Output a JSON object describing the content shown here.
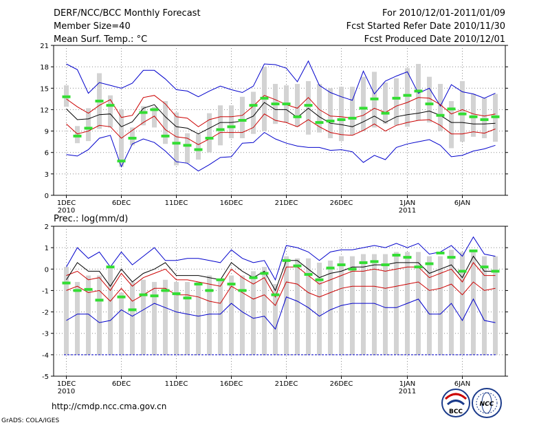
{
  "header": {
    "title": "DERF/NCC/BCC Monthly Forecast",
    "member_size": "Member Size=40",
    "variable_top": "Mean Surf. Temp.: °C",
    "period": "For 2010/12/01-2011/01/09",
    "started": "Fcst Started Refer Date 2010/11/30",
    "produced": "Fcst Produced Date 2010/12/01"
  },
  "footer": {
    "url": "http://cmdp.ncc.cma.gov.cn",
    "credit": "GrADS: COLA/IGES",
    "logo_left_text": "BCC",
    "logo_right_text": "NCC"
  },
  "colors": {
    "box": "#d3d3d3",
    "median": "#000000",
    "quartile": "#cc0000",
    "extreme": "#0000cc",
    "observed": "#33dd33",
    "grid": "#888888"
  },
  "chart_data": [
    {
      "type": "box-plume",
      "title": "Mean Surf. Temp.: °C",
      "ylabel": "°C",
      "ylim": [
        0,
        21
      ],
      "yticks": [
        0,
        3,
        6,
        9,
        12,
        15,
        18,
        21
      ],
      "xticks": [
        {
          "day": 1,
          "label": "1DEC",
          "sub": "2010"
        },
        {
          "day": 6,
          "label": "6DEC",
          "sub": ""
        },
        {
          "day": 11,
          "label": "11DEC",
          "sub": ""
        },
        {
          "day": 16,
          "label": "16DEC",
          "sub": ""
        },
        {
          "day": 21,
          "label": "21DEC",
          "sub": ""
        },
        {
          "day": 26,
          "label": "26DEC",
          "sub": ""
        },
        {
          "day": 32,
          "label": "1JAN",
          "sub": "2011"
        },
        {
          "day": 37,
          "label": "6JAN",
          "sub": ""
        }
      ],
      "days": 40,
      "box_low": [
        12.4,
        7.3,
        7.6,
        9.3,
        9.5,
        4.0,
        7.0,
        9.8,
        9.5,
        7.2,
        4.2,
        4.5,
        5.0,
        6.0,
        7.0,
        8.0,
        8.0,
        8.6,
        9.0,
        10.0,
        10.2,
        9.6,
        8.5,
        8.8,
        8.0,
        7.6,
        8.4,
        9.0,
        9.5,
        10.0,
        9.8,
        9.6,
        10.5,
        10.2,
        9.0,
        6.6,
        7.5,
        8.2,
        8.0,
        7.5
      ],
      "box_high": [
        15.4,
        9.7,
        12.2,
        17.1,
        14.0,
        12.0,
        9.5,
        12.5,
        12.4,
        13.2,
        11.6,
        8.7,
        8.6,
        11.5,
        12.6,
        12.6,
        13.8,
        14.5,
        18.0,
        15.6,
        15.4,
        15.6,
        16.0,
        15.6,
        15.0,
        15.2,
        15.2,
        16.6,
        17.3,
        15.8,
        16.4,
        17.8,
        18.4,
        16.6,
        15.6,
        13.2,
        16.0,
        14.2,
        13.6,
        14.2
      ],
      "median": [
        12.1,
        10.6,
        10.7,
        11.3,
        11.4,
        9.6,
        10.3,
        12.2,
        12.7,
        11.0,
        9.6,
        9.4,
        8.6,
        9.4,
        10.2,
        10.2,
        10.4,
        11.1,
        13.0,
        12.0,
        12.0,
        10.9,
        12.2,
        11.0,
        10.1,
        9.9,
        9.6,
        10.3,
        11.1,
        10.2,
        11.0,
        11.3,
        11.5,
        11.8,
        11.2,
        10.2,
        10.2,
        10.0,
        10.0,
        10.1
      ],
      "q_high": [
        13.5,
        12.4,
        11.5,
        12.6,
        13.4,
        10.9,
        11.2,
        13.7,
        14.0,
        12.8,
        11.0,
        10.8,
        9.6,
        10.6,
        11.0,
        11.0,
        11.2,
        12.5,
        14.0,
        13.4,
        12.7,
        12.2,
        13.7,
        12.0,
        11.1,
        11.0,
        10.8,
        11.2,
        12.2,
        11.6,
        12.5,
        13.0,
        13.7,
        13.6,
        12.7,
        11.4,
        12.0,
        11.4,
        11.1,
        11.4
      ],
      "q_low": [
        10.0,
        8.6,
        9.0,
        9.8,
        9.6,
        8.0,
        9.1,
        10.2,
        11.1,
        9.2,
        8.2,
        8.0,
        7.1,
        7.9,
        8.8,
        8.8,
        8.8,
        9.5,
        11.4,
        10.5,
        10.2,
        9.6,
        10.6,
        9.6,
        8.8,
        8.5,
        8.4,
        9.1,
        10.0,
        9.0,
        9.8,
        10.2,
        10.5,
        10.6,
        9.8,
        8.6,
        8.6,
        8.9,
        8.7,
        9.3
      ],
      "max_line": [
        18.4,
        17.6,
        14.3,
        15.8,
        15.4,
        15.0,
        15.7,
        17.5,
        17.5,
        16.3,
        14.8,
        14.6,
        13.8,
        14.6,
        15.3,
        14.8,
        14.4,
        15.3,
        18.4,
        18.3,
        17.8,
        15.9,
        18.8,
        15.4,
        14.4,
        13.8,
        13.3,
        17.4,
        14.2,
        16.0,
        16.7,
        17.3,
        14.3,
        15.0,
        12.5,
        15.5,
        14.5,
        14.2,
        13.6,
        14.3
      ],
      "min_line": [
        5.7,
        5.5,
        6.4,
        8.0,
        8.4,
        4.0,
        7.2,
        7.9,
        7.4,
        6.2,
        4.7,
        4.5,
        3.4,
        4.3,
        5.3,
        5.4,
        7.3,
        7.4,
        8.8,
        7.9,
        7.3,
        6.9,
        6.7,
        6.7,
        6.3,
        6.4,
        6.1,
        4.6,
        5.6,
        5.0,
        6.7,
        7.2,
        7.5,
        7.8,
        7.0,
        5.4,
        5.6,
        6.2,
        6.5,
        7.0
      ],
      "observed": [
        13.8,
        8.3,
        9.4,
        13.2,
        12.6,
        4.8,
        8.0,
        11.6,
        12.0,
        8.3,
        7.3,
        7.0,
        6.4,
        8.0,
        9.2,
        9.6,
        10.5,
        12.6,
        13.6,
        12.8,
        12.8,
        11.0,
        12.6,
        10.2,
        10.4,
        10.6,
        10.8,
        12.2,
        13.5,
        11.5,
        13.6,
        14.0,
        14.6,
        12.8,
        11.2,
        12.1,
        11.4,
        11.0,
        10.6,
        11.0
      ]
    },
    {
      "type": "box-plume",
      "title": "Prec.: log(mm/d)",
      "ylabel": "log(mm/d)",
      "ylim": [
        -5,
        2
      ],
      "yticks": [
        -5,
        -4,
        -3,
        -2,
        -1,
        0,
        1,
        2
      ],
      "xticks": [
        {
          "day": 1,
          "label": "1DEC",
          "sub": "2010"
        },
        {
          "day": 6,
          "label": "6DEC",
          "sub": ""
        },
        {
          "day": 11,
          "label": "11DEC",
          "sub": ""
        },
        {
          "day": 16,
          "label": "16DEC",
          "sub": ""
        },
        {
          "day": 21,
          "label": "21DEC",
          "sub": ""
        },
        {
          "day": 26,
          "label": "26DEC",
          "sub": ""
        },
        {
          "day": 32,
          "label": "1JAN",
          "sub": "2011"
        },
        {
          "day": 37,
          "label": "6JAN",
          "sub": ""
        }
      ],
      "days": 40,
      "box_low": [
        -4,
        -4,
        -4,
        -4,
        -4,
        -4,
        -4,
        -4,
        -4,
        -4,
        -4,
        -4,
        -4,
        -4,
        -4,
        -4,
        -4,
        -4,
        -4,
        -4,
        -4,
        -4,
        -4,
        -4,
        -4,
        -4,
        -4,
        -4,
        -4,
        -4,
        -4,
        -4,
        -4,
        -4,
        -4,
        -4,
        -4,
        -4,
        -4,
        -4
      ],
      "box_high": [
        0.1,
        -0.6,
        -0.3,
        -0.3,
        0.1,
        -1.1,
        -0.6,
        -0.5,
        -0.6,
        -0.5,
        -0.6,
        -0.6,
        -0.6,
        -0.3,
        -0.5,
        -0.3,
        -0.3,
        -0.1,
        0.1,
        -0.7,
        0.6,
        0.5,
        0.5,
        0.3,
        0.4,
        0.6,
        0.6,
        0.7,
        0.7,
        0.7,
        0.8,
        0.8,
        0.8,
        0.6,
        0.6,
        0.9,
        0.8,
        0.9,
        0.6,
        0.6
      ],
      "median": [
        -0.5,
        0.3,
        -0.1,
        -0.1,
        -0.8,
        0.0,
        -0.6,
        -0.2,
        0.0,
        0.3,
        -0.3,
        -0.3,
        -0.3,
        -0.4,
        -0.5,
        0.3,
        -0.1,
        -0.4,
        -0.1,
        -1.0,
        0.4,
        0.4,
        0.0,
        -0.4,
        -0.2,
        -0.1,
        0.1,
        0.1,
        0.2,
        0.2,
        0.3,
        0.3,
        0.3,
        -0.2,
        0.0,
        0.2,
        -0.4,
        0.6,
        -0.1,
        -0.1
      ],
      "q_high": [
        -0.3,
        -0.1,
        -0.5,
        -0.4,
        -1.0,
        -0.2,
        -0.8,
        -0.4,
        -0.2,
        0.0,
        -0.5,
        -0.5,
        -0.6,
        -0.7,
        -0.8,
        0.0,
        -0.4,
        -0.7,
        -0.4,
        -1.3,
        0.1,
        0.1,
        -0.3,
        -0.7,
        -0.5,
        -0.3,
        -0.1,
        -0.1,
        0.0,
        -0.1,
        0.0,
        0.1,
        0.1,
        -0.4,
        -0.2,
        0.0,
        -0.6,
        0.3,
        -0.3,
        -0.3
      ],
      "q_low": [
        -1.0,
        -0.8,
        -1.1,
        -1.0,
        -1.5,
        -0.9,
        -1.5,
        -1.2,
        -0.9,
        -0.9,
        -1.2,
        -1.2,
        -1.3,
        -1.5,
        -1.6,
        -0.8,
        -1.1,
        -1.4,
        -1.2,
        -1.7,
        -0.6,
        -0.7,
        -1.1,
        -1.3,
        -1.1,
        -0.9,
        -0.8,
        -0.8,
        -0.8,
        -0.9,
        -0.8,
        -0.7,
        -0.6,
        -1.0,
        -0.9,
        -0.7,
        -1.2,
        -0.6,
        -1.0,
        -0.9
      ],
      "max_line": [
        0.1,
        1.0,
        0.5,
        0.8,
        0.1,
        0.8,
        0.2,
        0.6,
        1.0,
        0.4,
        0.4,
        0.5,
        0.5,
        0.4,
        0.3,
        0.9,
        0.5,
        0.3,
        0.4,
        -0.5,
        1.1,
        1.0,
        0.8,
        0.4,
        0.8,
        0.9,
        0.9,
        1.0,
        1.1,
        1.0,
        1.2,
        1.0,
        1.2,
        0.7,
        0.8,
        1.1,
        0.6,
        1.5,
        0.7,
        0.6
      ],
      "min_line": [
        -2.4,
        -2.1,
        -2.1,
        -2.5,
        -2.4,
        -1.9,
        -2.2,
        -1.9,
        -1.6,
        -1.8,
        -2.0,
        -2.1,
        -2.2,
        -2.1,
        -2.1,
        -1.6,
        -2.0,
        -2.3,
        -2.2,
        -2.8,
        -1.3,
        -1.5,
        -1.8,
        -2.2,
        -1.9,
        -1.7,
        -1.6,
        -1.6,
        -1.6,
        -1.8,
        -1.8,
        -1.6,
        -1.4,
        -2.1,
        -2.1,
        -1.6,
        -2.4,
        -1.4,
        -2.4,
        -2.5
      ],
      "observed": [
        -0.65,
        -1.0,
        -0.95,
        -1.45,
        0.1,
        -1.3,
        -1.9,
        -1.2,
        -1.25,
        -1.0,
        -1.15,
        -1.35,
        -0.7,
        -1.0,
        -0.5,
        -0.7,
        -1.0,
        -0.4,
        -0.2,
        -1.2,
        0.4,
        0.15,
        -0.25,
        -0.5,
        0.05,
        0.2,
        0.0,
        0.3,
        0.35,
        0.2,
        0.65,
        0.55,
        0.1,
        0.25,
        0.75,
        0.55,
        -0.1,
        0.85,
        0.1,
        -0.1
      ]
    }
  ]
}
